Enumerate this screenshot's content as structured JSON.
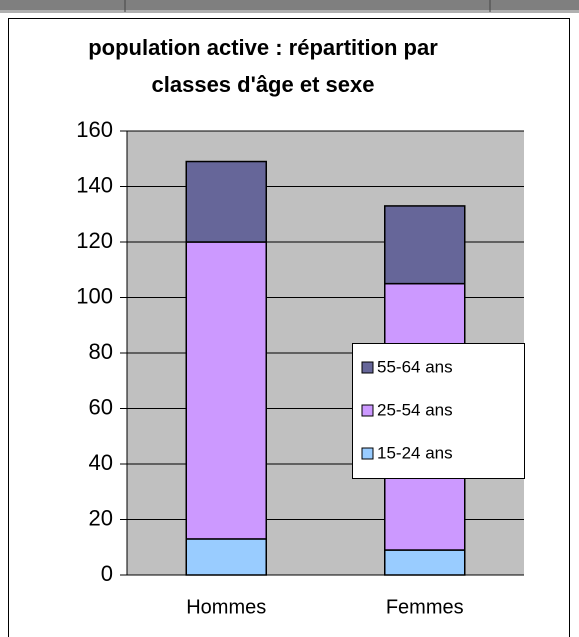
{
  "chart_data": {
    "type": "stacked_bar",
    "title": [
      "population active : répartition par",
      "classes d'âge et sexe"
    ],
    "categories": [
      "Hommes",
      "Femmes"
    ],
    "series": [
      {
        "name": "15-24 ans",
        "color": "#99ccff",
        "values": [
          13,
          9
        ]
      },
      {
        "name": "25-54 ans",
        "color": "#cc99ff",
        "values": [
          107,
          96
        ]
      },
      {
        "name": "55-64 ans",
        "color": "#666699",
        "values": [
          29,
          28
        ]
      }
    ],
    "ylim": [
      0,
      160
    ],
    "yticks": [
      0,
      20,
      40,
      60,
      80,
      100,
      120,
      140,
      160
    ],
    "grid": true,
    "legend": "right"
  }
}
